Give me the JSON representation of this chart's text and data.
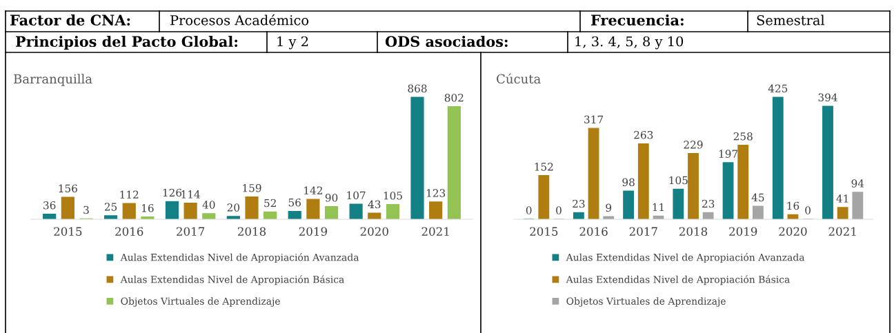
{
  "chart_data": [
    {
      "type": "other",
      "annotations": [
        "Factor de CNA:",
        "Procesos Académico",
        "Frecuencia:",
        "Semestral",
        "Principios del Pacto Global:",
        "1 y 2",
        "ODS asociados:",
        "1, 3. 4, 5, 8 y 10"
      ]
    },
    {
      "type": "bar",
      "title": "Barranquilla",
      "categories": [
        "2015",
        "2016",
        "2017",
        "2018",
        "2019",
        "2020",
        "2021"
      ],
      "data_labels": true,
      "legend": "bottom",
      "series": [
        {
          "name": "Aulas Extendidas Nivel de Apropiación Avanzada",
          "color": "#138086",
          "values": [
            36,
            25,
            126,
            20,
            56,
            107,
            868
          ]
        },
        {
          "name": "Aulas Extendidas Nivel de Apropiación Básica",
          "color": "#b07d10",
          "values": [
            156,
            112,
            114,
            159,
            142,
            43,
            123
          ]
        },
        {
          "name": "Objetos Virtuales de Aprendizaje",
          "color": "#92c353",
          "values": [
            3,
            16,
            40,
            52,
            90,
            105,
            802
          ]
        }
      ]
    },
    {
      "type": "bar",
      "title": "Cúcuta",
      "categories": [
        "2015",
        "2016",
        "2017",
        "2018",
        "2019",
        "2020",
        "2021"
      ],
      "data_labels": true,
      "legend": "bottom",
      "series": [
        {
          "name": "Aulas Extendidas Nivel de Apropiación Avanzada",
          "color": "#138086",
          "values": [
            0,
            23,
            98,
            105,
            197,
            425,
            394
          ]
        },
        {
          "name": "Aulas Extendidas Nivel de Apropiación Básica",
          "color": "#b07d10",
          "values": [
            152,
            317,
            263,
            229,
            258,
            16,
            41
          ]
        },
        {
          "name": "Objetos Virtuales de Aprendizaje",
          "color": "#a5a5a5",
          "values": [
            0,
            9,
            11,
            23,
            45,
            0,
            94
          ]
        }
      ]
    }
  ]
}
